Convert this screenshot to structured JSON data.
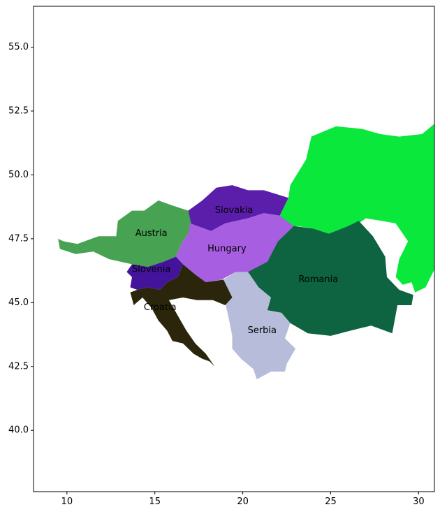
{
  "chart_data": {
    "type": "map",
    "title": "",
    "xlabel": "",
    "ylabel": "",
    "xlim": [
      8.1,
      30.9
    ],
    "ylim": [
      37.6,
      56.6
    ],
    "x_ticks": [
      10,
      15,
      20,
      25,
      30
    ],
    "y_ticks": [
      40.0,
      42.5,
      45.0,
      47.5,
      50.0,
      52.5,
      55.0
    ],
    "y_tick_labels": [
      "40.0",
      "42.5",
      "45.0",
      "47.5",
      "50.0",
      "52.5",
      "55.0"
    ],
    "grid": false,
    "regions": [
      {
        "name": "Ukraine",
        "color": "#0ae83b",
        "labeled": false,
        "outline": [
          [
            22.1,
            48.4
          ],
          [
            22.6,
            49.1
          ],
          [
            22.7,
            49.6
          ],
          [
            23.6,
            50.6
          ],
          [
            23.9,
            51.5
          ],
          [
            25.3,
            51.9
          ],
          [
            26.8,
            51.8
          ],
          [
            27.8,
            51.6
          ],
          [
            28.9,
            51.5
          ],
          [
            30.2,
            51.6
          ],
          [
            30.9,
            52.0
          ],
          [
            30.9,
            46.3
          ],
          [
            30.4,
            45.6
          ],
          [
            29.8,
            45.4
          ],
          [
            29.6,
            45.8
          ],
          [
            29.1,
            45.7
          ],
          [
            28.7,
            46.0
          ],
          [
            28.9,
            46.7
          ],
          [
            29.4,
            47.4
          ],
          [
            28.7,
            48.1
          ],
          [
            27.9,
            48.2
          ],
          [
            27.0,
            48.3
          ],
          [
            26.6,
            48.1
          ],
          [
            26.6,
            47.9
          ],
          [
            26.0,
            48.0
          ],
          [
            24.9,
            47.7
          ],
          [
            24.0,
            47.9
          ],
          [
            23.1,
            48.0
          ],
          [
            22.5,
            47.9
          ]
        ]
      },
      {
        "name": "Slovakia",
        "color": "#5a1eab",
        "labeled": true,
        "label_pos": [
          19.5,
          48.6
        ],
        "outline": [
          [
            16.9,
            48.6
          ],
          [
            17.7,
            49.0
          ],
          [
            18.5,
            49.5
          ],
          [
            19.4,
            49.6
          ],
          [
            20.3,
            49.4
          ],
          [
            21.2,
            49.4
          ],
          [
            22.6,
            49.1
          ],
          [
            22.1,
            48.4
          ],
          [
            21.2,
            48.5
          ],
          [
            20.3,
            48.3
          ],
          [
            19.0,
            48.1
          ],
          [
            18.2,
            47.8
          ],
          [
            17.0,
            48.1
          ]
        ]
      },
      {
        "name": "Austria",
        "color": "#47a352",
        "labeled": true,
        "label_pos": [
          14.8,
          47.7
        ],
        "outline": [
          [
            9.5,
            47.5
          ],
          [
            9.6,
            47.1
          ],
          [
            10.5,
            46.9
          ],
          [
            11.5,
            47.0
          ],
          [
            12.4,
            46.7
          ],
          [
            13.7,
            46.5
          ],
          [
            14.6,
            46.4
          ],
          [
            15.5,
            46.6
          ],
          [
            16.2,
            46.8
          ],
          [
            16.5,
            47.3
          ],
          [
            16.9,
            47.7
          ],
          [
            17.1,
            48.0
          ],
          [
            16.9,
            48.6
          ],
          [
            16.0,
            48.8
          ],
          [
            15.2,
            49.0
          ],
          [
            14.4,
            48.6
          ],
          [
            13.7,
            48.6
          ],
          [
            12.9,
            48.2
          ],
          [
            12.8,
            47.6
          ],
          [
            11.8,
            47.6
          ],
          [
            10.6,
            47.3
          ],
          [
            9.8,
            47.4
          ]
        ]
      },
      {
        "name": "Hungary",
        "color": "#a85ee1",
        "labeled": true,
        "label_pos": [
          19.1,
          47.1
        ],
        "outline": [
          [
            16.2,
            46.8
          ],
          [
            16.5,
            47.3
          ],
          [
            16.9,
            47.7
          ],
          [
            17.0,
            48.1
          ],
          [
            18.2,
            47.8
          ],
          [
            19.0,
            48.1
          ],
          [
            20.3,
            48.3
          ],
          [
            21.2,
            48.5
          ],
          [
            22.1,
            48.4
          ],
          [
            22.9,
            48.0
          ],
          [
            22.0,
            47.4
          ],
          [
            21.4,
            46.6
          ],
          [
            20.6,
            46.1
          ],
          [
            19.6,
            46.2
          ],
          [
            18.8,
            45.9
          ],
          [
            17.9,
            45.8
          ],
          [
            17.3,
            46.1
          ],
          [
            16.6,
            46.5
          ]
        ]
      },
      {
        "name": "Romania",
        "color": "#0e6340",
        "labeled": true,
        "label_pos": [
          24.3,
          45.9
        ],
        "outline": [
          [
            20.3,
            46.2
          ],
          [
            21.4,
            46.6
          ],
          [
            22.0,
            47.4
          ],
          [
            22.9,
            48.0
          ],
          [
            24.0,
            47.9
          ],
          [
            24.9,
            47.7
          ],
          [
            26.0,
            48.0
          ],
          [
            26.6,
            48.2
          ],
          [
            27.4,
            47.6
          ],
          [
            28.1,
            46.8
          ],
          [
            28.2,
            46.0
          ],
          [
            28.9,
            45.5
          ],
          [
            29.7,
            45.3
          ],
          [
            29.6,
            44.9
          ],
          [
            28.8,
            44.9
          ],
          [
            28.5,
            43.8
          ],
          [
            27.3,
            44.1
          ],
          [
            26.1,
            43.9
          ],
          [
            25.0,
            43.7
          ],
          [
            23.7,
            43.8
          ],
          [
            22.7,
            44.2
          ],
          [
            22.2,
            44.6
          ],
          [
            21.4,
            44.7
          ],
          [
            21.6,
            45.2
          ],
          [
            20.9,
            45.6
          ]
        ]
      },
      {
        "name": "Serbia",
        "color": "#b6bcda",
        "labeled": true,
        "label_pos": [
          21.1,
          43.9
        ],
        "outline": [
          [
            18.9,
            45.9
          ],
          [
            19.6,
            46.2
          ],
          [
            20.3,
            46.2
          ],
          [
            20.9,
            45.6
          ],
          [
            21.6,
            45.2
          ],
          [
            21.4,
            44.7
          ],
          [
            22.2,
            44.6
          ],
          [
            22.7,
            44.2
          ],
          [
            22.4,
            43.6
          ],
          [
            23.0,
            43.2
          ],
          [
            22.5,
            42.6
          ],
          [
            22.4,
            42.3
          ],
          [
            21.6,
            42.3
          ],
          [
            20.8,
            42.0
          ],
          [
            20.6,
            42.4
          ],
          [
            19.9,
            42.8
          ],
          [
            19.4,
            43.2
          ],
          [
            19.4,
            43.7
          ],
          [
            19.2,
            44.4
          ],
          [
            19.0,
            45.0
          ],
          [
            19.2,
            45.4
          ]
        ]
      },
      {
        "name": "Slovenia",
        "color": "#44139c",
        "labeled": true,
        "label_pos": [
          14.8,
          46.3
        ],
        "outline": [
          [
            13.7,
            46.5
          ],
          [
            14.6,
            46.4
          ],
          [
            15.5,
            46.6
          ],
          [
            16.2,
            46.8
          ],
          [
            16.6,
            46.5
          ],
          [
            16.3,
            46.0
          ],
          [
            15.7,
            45.8
          ],
          [
            15.3,
            45.5
          ],
          [
            14.6,
            45.6
          ],
          [
            14.0,
            45.5
          ],
          [
            13.6,
            45.6
          ],
          [
            13.7,
            46.0
          ],
          [
            13.4,
            46.2
          ]
        ]
      },
      {
        "name": "Croatia",
        "color": "#2b260b",
        "labeled": true,
        "label_pos": [
          15.3,
          44.8
        ],
        "outline": [
          [
            13.6,
            45.4
          ],
          [
            13.8,
            44.9
          ],
          [
            14.3,
            45.2
          ],
          [
            14.8,
            44.8
          ],
          [
            15.2,
            44.3
          ],
          [
            15.7,
            43.9
          ],
          [
            16.0,
            43.5
          ],
          [
            16.6,
            43.4
          ],
          [
            17.2,
            43.0
          ],
          [
            17.7,
            42.8
          ],
          [
            18.1,
            42.7
          ],
          [
            18.4,
            42.5
          ],
          [
            17.9,
            43.0
          ],
          [
            17.3,
            43.4
          ],
          [
            16.8,
            43.9
          ],
          [
            16.3,
            44.5
          ],
          [
            15.8,
            45.1
          ],
          [
            16.6,
            45.2
          ],
          [
            17.4,
            45.1
          ],
          [
            18.3,
            45.1
          ],
          [
            19.0,
            44.9
          ],
          [
            19.4,
            45.2
          ],
          [
            18.9,
            45.9
          ],
          [
            17.9,
            45.8
          ],
          [
            17.3,
            46.1
          ],
          [
            16.6,
            46.5
          ],
          [
            16.3,
            46.0
          ],
          [
            15.7,
            45.8
          ],
          [
            15.3,
            45.5
          ],
          [
            14.6,
            45.6
          ],
          [
            14.0,
            45.5
          ]
        ]
      }
    ]
  }
}
